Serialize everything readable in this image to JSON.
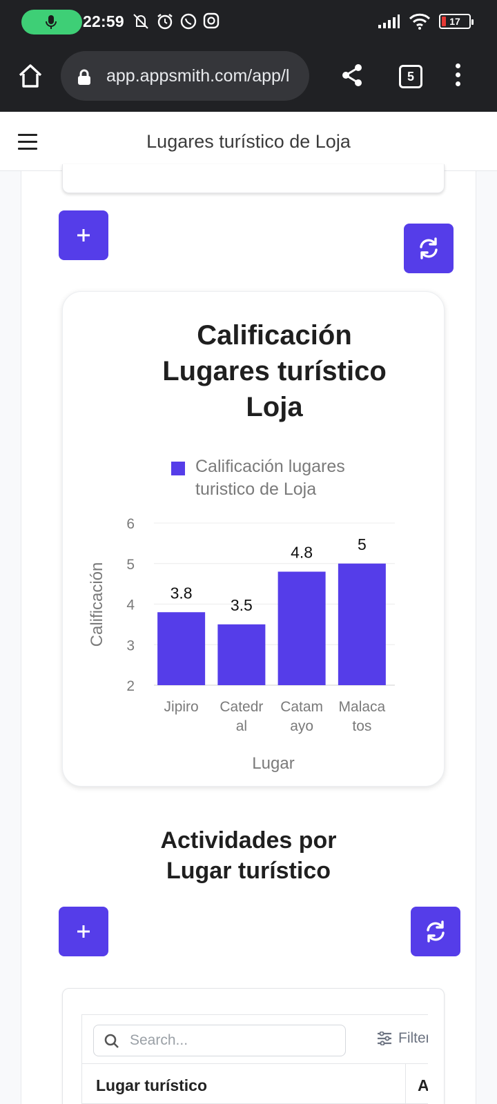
{
  "status_bar": {
    "time": "22:59",
    "battery_level": "17",
    "icons": [
      "mic-icon",
      "mute-vibrate-icon",
      "alarm-icon",
      "whatsapp-icon",
      "instagram-icon",
      "signal-icon",
      "wifi-icon",
      "battery-icon"
    ]
  },
  "browser": {
    "url": "app.appsmith.com/app/l",
    "tab_count": "5"
  },
  "header": {
    "title": "Lugares turístico de Loja"
  },
  "chart": {
    "title": "Calificación Lugares turístico Loja",
    "legend_label": "Calificación lugares turistico de Loja"
  },
  "chart_data": {
    "type": "bar",
    "title": "Calificación Lugares turístico Loja",
    "xlabel": "Lugar",
    "ylabel": "Calificación",
    "categories": [
      "Jipiro",
      "Catedral",
      "Catamayo",
      "Malacatos"
    ],
    "category_lines": [
      [
        "Jipiro"
      ],
      [
        "Catedr",
        "al"
      ],
      [
        "Catam",
        "ayo"
      ],
      [
        "Malaca",
        "tos"
      ]
    ],
    "series": [
      {
        "name": "Calificación lugares turistico de Loja",
        "values": [
          3.8,
          3.5,
          4.8,
          5
        ]
      }
    ],
    "value_labels": [
      "3.8",
      "3.5",
      "4.8",
      "5"
    ],
    "ylim": [
      2,
      6
    ],
    "yticks": [
      "2",
      "3",
      "4",
      "5",
      "6"
    ],
    "grid": true,
    "legend_position": "top",
    "color": "#553de9"
  },
  "section": {
    "title": "Actividades por Lugar turístico"
  },
  "table": {
    "search_placeholder": "Search...",
    "filter_label": "Filters",
    "columns": [
      "Lugar turístico",
      "Actividad"
    ]
  },
  "colors": {
    "accent": "#553de9",
    "chrome": "#202124"
  }
}
